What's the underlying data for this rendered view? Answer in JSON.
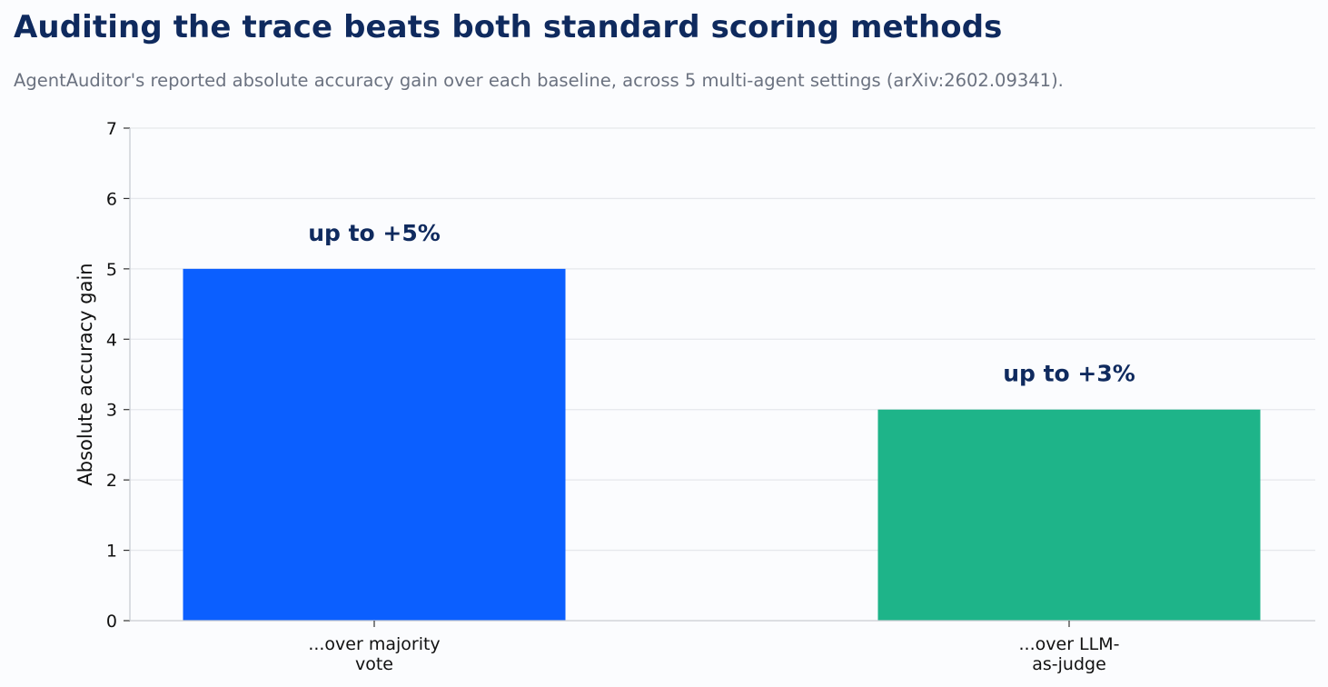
{
  "title": "Auditing the trace beats both standard scoring methods",
  "subtitle": "AgentAuditor's reported absolute accuracy gain over each baseline, across 5 multi-agent settings (arXiv:2602.09341).",
  "colors": {
    "title": "#0f2a5e",
    "subtitle": "#6b7280",
    "bar_primary": "#0b5fff",
    "bar_secondary": "#1eb489",
    "grid": "#e6e8ec",
    "axis": "#c9ccd2",
    "background": "#fbfcfe"
  },
  "chart_data": {
    "type": "bar",
    "categories": [
      "...over majority vote",
      "...over LLM-as-judge"
    ],
    "category_label_lines": [
      [
        "...over majority",
        "vote"
      ],
      [
        "...over LLM-",
        "as-judge"
      ]
    ],
    "values": [
      5,
      3
    ],
    "bar_colors": [
      "#0b5fff",
      "#1eb489"
    ],
    "data_labels": [
      "up to +5%",
      "up to +3%"
    ],
    "title": "Auditing the trace beats both standard scoring methods",
    "xlabel": "",
    "ylabel": "Absolute accuracy gain",
    "ylim": [
      0,
      7
    ],
    "yticks": [
      0,
      1,
      2,
      3,
      4,
      5,
      6,
      7
    ],
    "grid": true,
    "legend": "none"
  }
}
